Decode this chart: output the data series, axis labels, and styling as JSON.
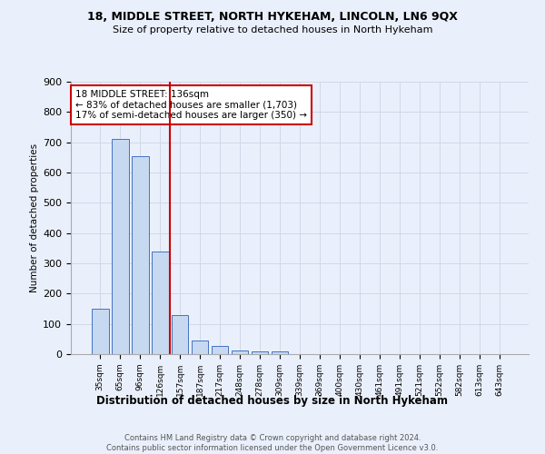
{
  "title": "18, MIDDLE STREET, NORTH HYKEHAM, LINCOLN, LN6 9QX",
  "subtitle": "Size of property relative to detached houses in North Hykeham",
  "xlabel": "Distribution of detached houses by size in North Hykeham",
  "ylabel": "Number of detached properties",
  "categories": [
    "35sqm",
    "65sqm",
    "96sqm",
    "126sqm",
    "157sqm",
    "187sqm",
    "217sqm",
    "248sqm",
    "278sqm",
    "309sqm",
    "339sqm",
    "369sqm",
    "400sqm",
    "430sqm",
    "461sqm",
    "491sqm",
    "521sqm",
    "552sqm",
    "582sqm",
    "613sqm",
    "643sqm"
  ],
  "values": [
    150,
    710,
    655,
    340,
    130,
    45,
    28,
    12,
    8,
    10,
    0,
    0,
    0,
    0,
    0,
    0,
    0,
    0,
    0,
    0,
    0
  ],
  "bar_color": "#c6d9f0",
  "bar_edge_color": "#4472c4",
  "grid_color": "#d0d8e8",
  "background_color": "#eaf0fb",
  "red_line_x": 3.5,
  "annotation_text": "18 MIDDLE STREET: 136sqm\n← 83% of detached houses are smaller (1,703)\n17% of semi-detached houses are larger (350) →",
  "annotation_box_color": "#ffffff",
  "annotation_box_edge_color": "#cc0000",
  "footer_text": "Contains HM Land Registry data © Crown copyright and database right 2024.\nContains public sector information licensed under the Open Government Licence v3.0.",
  "ylim": [
    0,
    900
  ],
  "yticks": [
    0,
    100,
    200,
    300,
    400,
    500,
    600,
    700,
    800,
    900
  ]
}
